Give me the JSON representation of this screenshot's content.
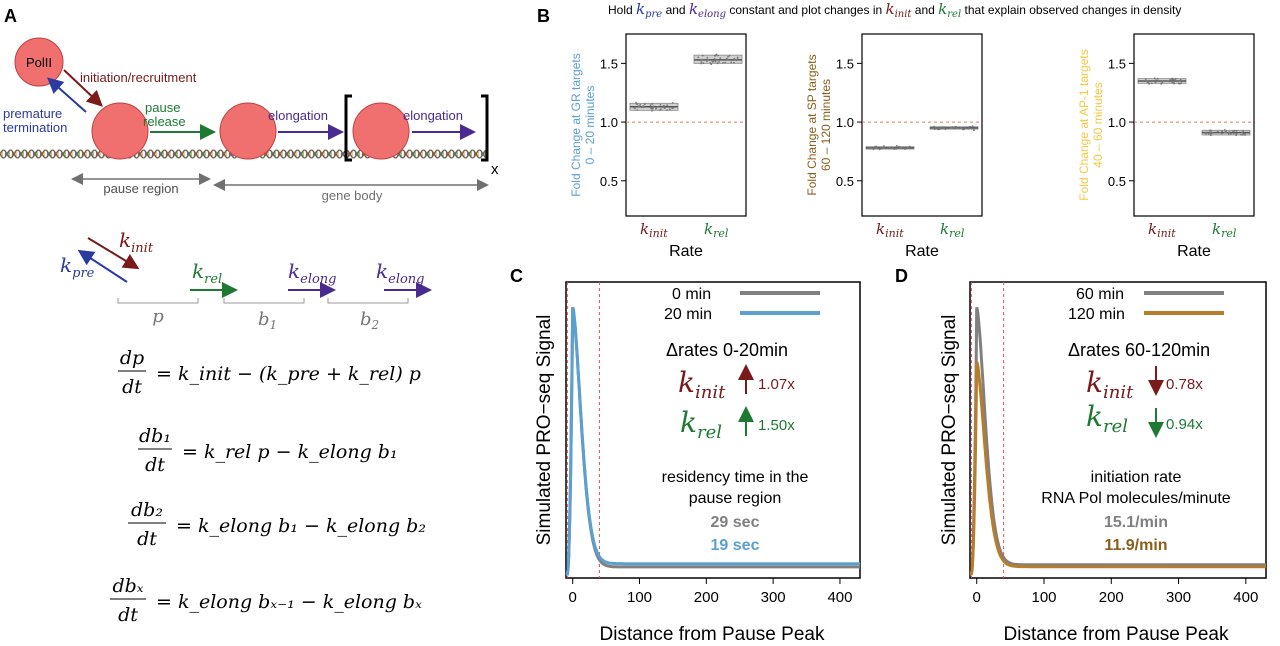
{
  "colors": {
    "gr": "#5aa0d0",
    "sp": "#8b5e1a",
    "ap1": "#f5c842",
    "init": "#7a1a1a",
    "rel": "#1e7a32",
    "pre": "#2a3aa0",
    "elong": "#4a2a90",
    "gray": "#808080",
    "orange": "#b87c2a",
    "dashed": "#e05050",
    "blue": "#5aa0d0"
  },
  "panel_a": {
    "letter": "A",
    "polii": "PolII",
    "initiation": "initiation/recruitment",
    "premature1": "premature",
    "premature2": "termination",
    "pause1": "pause",
    "pause2": "release",
    "elongation1": "elongation",
    "elongation2": "elongation",
    "x": "x",
    "pause_region": "pause region",
    "gene_body": "gene body",
    "k_init": "k",
    "k_init_sub": "init",
    "k_pre": "k",
    "k_pre_sub": "pre",
    "k_rel": "k",
    "k_rel_sub": "rel",
    "k_elong": "k",
    "k_elong_sub": "elong",
    "p": "p",
    "b1": "b",
    "b1_sub": "1",
    "b2": "b",
    "b2_sub": "2",
    "eq1_lhs_num": "dp",
    "eq1_lhs_den": "dt",
    "eq1_rhs": "= k_init − (k_pre + k_rel) p",
    "eq2_lhs_num": "db₁",
    "eq2_lhs_den": "dt",
    "eq2_rhs": "= k_rel p − k_elong b₁",
    "eq3_lhs_num": "db₂",
    "eq3_lhs_den": "dt",
    "eq3_rhs": "= k_elong b₁ − k_elong b₂",
    "eq4_lhs_num": "dbₓ",
    "eq4_lhs_den": "dt",
    "eq4_rhs": "= k_elong bₓ₋₁ − k_elong bₓ"
  },
  "panel_b": {
    "letter": "B",
    "title_pre": "Hold",
    "title_and": "and",
    "title_mid": "constant and plot changes in",
    "title_and2": "and",
    "title_post": "that explain observed changes in density",
    "xlabel": "Rate",
    "tick_init": "k",
    "tick_init_sub": "init",
    "tick_rel": "k",
    "tick_rel_sub": "rel",
    "y_ticks": [
      "0.5",
      "1.0",
      "1.5"
    ],
    "plots": [
      {
        "ylabel1": "Fold Change at GR targets",
        "ylabel2": "0 – 20 minutes",
        "color": "#5aa0d0",
        "init_median": 1.13,
        "init_q1": 1.1,
        "init_q3": 1.16,
        "rel_median": 1.53,
        "rel_q1": 1.5,
        "rel_q3": 1.57
      },
      {
        "ylabel1": "Fold Change at SP targets",
        "ylabel2": "60 – 120 minutes",
        "color": "#8b5e1a",
        "init_median": 0.78,
        "init_q1": 0.77,
        "init_q3": 0.79,
        "rel_median": 0.95,
        "rel_q1": 0.94,
        "rel_q3": 0.96
      },
      {
        "ylabel1": "Fold Change at AP-1 targets",
        "ylabel2": "40 – 60 minutes",
        "color": "#f5c842",
        "init_median": 1.35,
        "init_q1": 1.33,
        "init_q3": 1.37,
        "rel_median": 0.91,
        "rel_q1": 0.89,
        "rel_q3": 0.93
      }
    ],
    "ylim": [
      0.2,
      1.75
    ]
  },
  "panel_c": {
    "letter": "C",
    "ylabel": "Simulated PRO−seq Signal",
    "xlabel": "Distance from Pause Peak",
    "legend1": "0 min",
    "legend2": "20 min",
    "delta": "Δrates 0-20min",
    "k_init": "k",
    "k_init_sub": "init",
    "init_fold": "1.07x",
    "k_rel": "k",
    "k_rel_sub": "rel",
    "rel_fold": "1.50x",
    "res1": "residency time in the",
    "res2": "pause region",
    "val1": "29 sec",
    "val2": "19 sec",
    "x_ticks": [
      "0",
      "100",
      "200",
      "300",
      "400"
    ]
  },
  "panel_d": {
    "letter": "D",
    "ylabel": "Simulated PRO−seq Signal",
    "xlabel": "Distance from Pause Peak",
    "legend1": "60 min",
    "legend2": "120 min",
    "delta": "Δrates 60-120min",
    "k_init": "k",
    "k_init_sub": "init",
    "init_fold": "0.78x",
    "k_rel": "k",
    "k_rel_sub": "rel",
    "rel_fold": "0.94x",
    "ir1": "initiation rate",
    "ir2": "RNA Pol molecules/minute",
    "val1": "15.1/min",
    "val2": "11.9/min",
    "x_ticks": [
      "0",
      "100",
      "200",
      "300",
      "400"
    ]
  },
  "chart_data": [
    {
      "type": "scatter",
      "title": "Fold Change at GR targets 0 – 20 minutes",
      "categories": [
        "k_init",
        "k_rel"
      ],
      "series": [
        {
          "name": "k_init",
          "values": [
            1.13
          ]
        },
        {
          "name": "k_rel",
          "values": [
            1.53
          ]
        }
      ],
      "xlabel": "Rate",
      "ylabel": "Fold Change at GR targets 0 – 20 minutes",
      "ylim": [
        0.2,
        1.75
      ]
    },
    {
      "type": "scatter",
      "title": "Fold Change at SP targets 60 – 120 minutes",
      "categories": [
        "k_init",
        "k_rel"
      ],
      "series": [
        {
          "name": "k_init",
          "values": [
            0.78
          ]
        },
        {
          "name": "k_rel",
          "values": [
            0.95
          ]
        }
      ],
      "xlabel": "Rate",
      "ylabel": "Fold Change at SP targets 60 – 120 minutes",
      "ylim": [
        0.2,
        1.75
      ]
    },
    {
      "type": "scatter",
      "title": "Fold Change at AP-1 targets 40 – 60 minutes",
      "categories": [
        "k_init",
        "k_rel"
      ],
      "series": [
        {
          "name": "k_init",
          "values": [
            1.35
          ]
        },
        {
          "name": "k_rel",
          "values": [
            0.91
          ]
        }
      ],
      "xlabel": "Rate",
      "ylabel": "Fold Change at AP-1 targets 40 – 60 minutes",
      "ylim": [
        0.2,
        1.75
      ]
    },
    {
      "type": "line",
      "title": "Simulated PRO-seq Signal 0-20 min",
      "xlabel": "Distance from Pause Peak",
      "ylabel": "Simulated PRO−seq Signal",
      "xlim": [
        -10,
        430
      ],
      "ylim": [
        0,
        1.0
      ],
      "series": [
        {
          "name": "0 min",
          "color": "#808080",
          "x": [
            -8,
            -4,
            0,
            5,
            10,
            20,
            30,
            40,
            60,
            100,
            200,
            300,
            430
          ],
          "values": [
            0,
            0.55,
            0.98,
            0.9,
            0.7,
            0.35,
            0.14,
            0.06,
            0.03,
            0.028,
            0.026,
            0.026,
            0.026
          ]
        },
        {
          "name": "20 min",
          "color": "#5aa0d0",
          "x": [
            -8,
            -4,
            0,
            5,
            10,
            20,
            30,
            40,
            60,
            100,
            200,
            300,
            430
          ],
          "values": [
            0,
            0.55,
            0.98,
            0.9,
            0.72,
            0.38,
            0.17,
            0.08,
            0.045,
            0.04,
            0.038,
            0.038,
            0.038
          ]
        }
      ]
    },
    {
      "type": "line",
      "title": "Simulated PRO-seq Signal 60-120 min",
      "xlabel": "Distance from Pause Peak",
      "ylabel": "Simulated PRO−seq Signal",
      "xlim": [
        -10,
        430
      ],
      "ylim": [
        0,
        1.0
      ],
      "series": [
        {
          "name": "60 min",
          "color": "#808080",
          "x": [
            -8,
            -4,
            0,
            5,
            10,
            20,
            30,
            40,
            60,
            100,
            200,
            300,
            430
          ],
          "values": [
            0,
            0.5,
            0.98,
            0.88,
            0.7,
            0.36,
            0.15,
            0.07,
            0.04,
            0.035,
            0.034,
            0.034,
            0.034
          ]
        },
        {
          "name": "120 min",
          "color": "#b87c2a",
          "x": [
            -8,
            -4,
            0,
            5,
            10,
            20,
            30,
            40,
            60,
            100,
            200,
            300,
            430
          ],
          "values": [
            0,
            0.4,
            0.78,
            0.7,
            0.56,
            0.29,
            0.12,
            0.06,
            0.032,
            0.028,
            0.027,
            0.027,
            0.027
          ]
        }
      ]
    }
  ]
}
